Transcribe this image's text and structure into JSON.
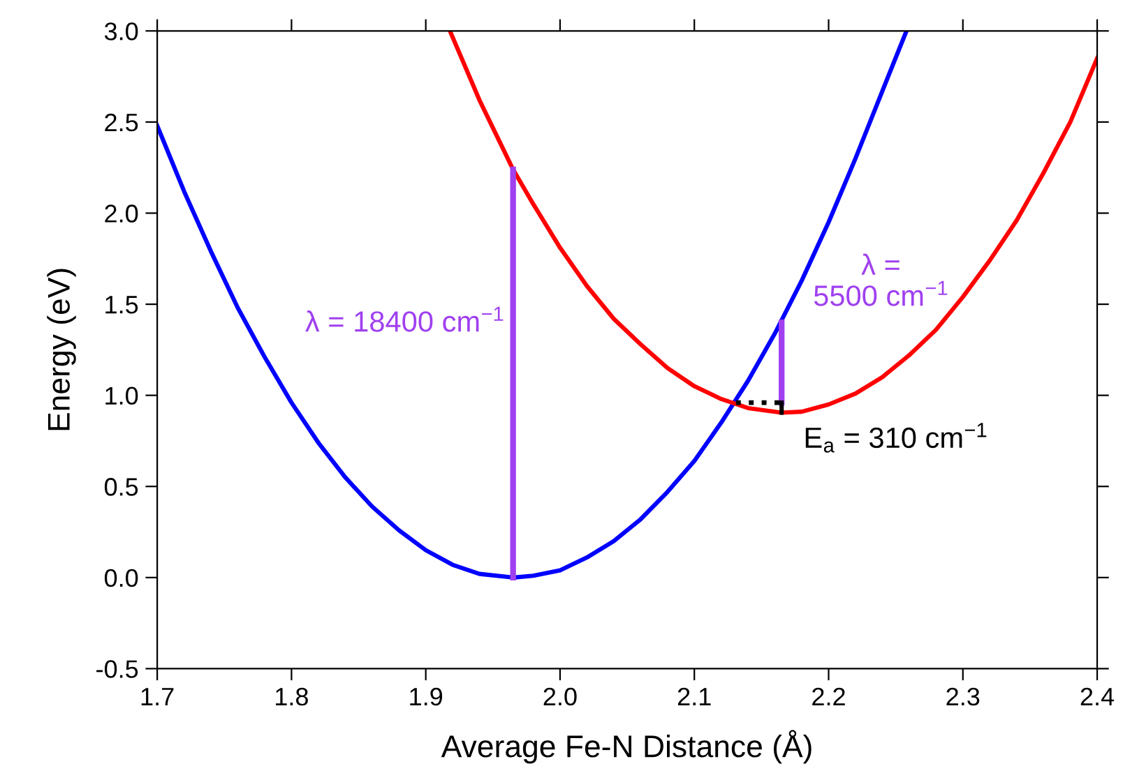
{
  "chart_data": {
    "type": "line",
    "xlabel": "Average Fe-N Distance (Å)",
    "ylabel": "Energy (eV)",
    "xlim": [
      1.7,
      2.4
    ],
    "xticks": [
      1.7,
      1.8,
      1.9,
      {
        "value": 2,
        "label": "2.0"
      },
      2.1,
      2.2,
      2.3,
      2.4
    ],
    "ylim": [
      -0.5,
      3.0
    ],
    "yticks": [
      -0.5,
      {
        "value": 0,
        "label": "0.0"
      },
      0.5,
      {
        "value": 1,
        "label": "1.0"
      },
      1.5,
      {
        "value": 2,
        "label": "2.0"
      },
      2.5,
      {
        "value": 3,
        "label": "3.0"
      }
    ],
    "marker": "none",
    "series": [
      {
        "color": "#0000ff",
        "line_style": "solid",
        "x": [
          1.7,
          1.72,
          1.74,
          1.76,
          1.78,
          1.8,
          1.82,
          1.84,
          1.86,
          1.88,
          1.9,
          1.92,
          1.94,
          1.965,
          1.98,
          2.0,
          2.02,
          2.04,
          2.06,
          2.08,
          2.1,
          2.12,
          2.14,
          2.16,
          2.18,
          2.2,
          2.22,
          2.24,
          2.258
        ],
        "values": [
          2.48,
          2.12,
          1.79,
          1.48,
          1.21,
          0.96,
          0.74,
          0.55,
          0.39,
          0.26,
          0.15,
          0.07,
          0.02,
          0.0,
          0.01,
          0.04,
          0.11,
          0.2,
          0.32,
          0.47,
          0.64,
          0.85,
          1.08,
          1.34,
          1.63,
          1.95,
          2.3,
          2.67,
          3.0
        ]
      },
      {
        "color": "#ff0000",
        "line_style": "solid",
        "x": [
          1.918,
          1.94,
          1.965,
          1.98,
          2.0,
          2.02,
          2.04,
          2.06,
          2.08,
          2.1,
          2.12,
          2.14,
          2.165,
          2.18,
          2.2,
          2.22,
          2.24,
          2.26,
          2.28,
          2.3,
          2.32,
          2.34,
          2.36,
          2.38,
          2.4
        ],
        "values": [
          3.0,
          2.62,
          2.24,
          2.05,
          1.81,
          1.6,
          1.42,
          1.28,
          1.15,
          1.05,
          0.98,
          0.93,
          0.905,
          0.91,
          0.95,
          1.01,
          1.1,
          1.22,
          1.36,
          1.54,
          1.74,
          1.96,
          2.22,
          2.5,
          2.85
        ]
      },
      {
        "color": "#a040f0",
        "line_style": "solid",
        "x": [
          1.965,
          1.965
        ],
        "values": [
          0.0,
          2.24
        ]
      },
      {
        "color": "#a040f0",
        "line_style": "solid",
        "x": [
          2.165,
          2.165
        ],
        "values": [
          0.96,
          1.4
        ]
      },
      {
        "color": "#000000",
        "line_style": "dotted",
        "x": [
          2.131,
          2.165
        ],
        "values": [
          0.96,
          0.96
        ]
      },
      {
        "color": "#000000",
        "line_style": "solid",
        "x": [
          2.165,
          2.165
        ],
        "values": [
          0.905,
          0.96
        ]
      }
    ],
    "annotations": [
      "λ = 18400 cm$^{−1}$",
      "λ =\n5500 cm$^{−1}$",
      "E$_{a}$ = 310 cm$^{−1}$"
    ]
  }
}
